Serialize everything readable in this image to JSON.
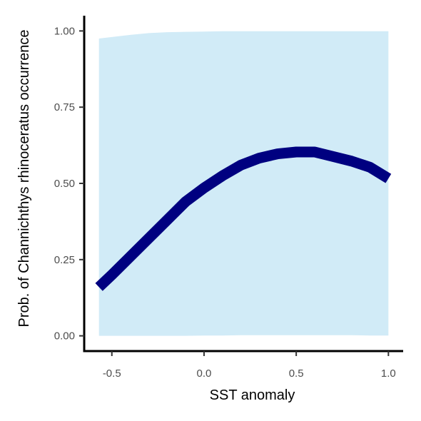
{
  "chart_data": {
    "type": "line",
    "title": "",
    "xlabel": "SST anomaly",
    "ylabel": "Prob. of  Channichthys rhinoceratus  occurrence",
    "xlim": [
      -0.65,
      1.08
    ],
    "ylim": [
      -0.05,
      1.05
    ],
    "x_ticks": [
      -0.5,
      0.0,
      0.5,
      1.0
    ],
    "x_tick_labels": [
      "-0.5",
      "0.0",
      "0.5",
      "1.0"
    ],
    "y_ticks": [
      0.0,
      0.25,
      0.5,
      0.75,
      1.0
    ],
    "y_tick_labels": [
      "0.00",
      "0.25",
      "0.50",
      "0.75",
      "1.00"
    ],
    "grid": false,
    "line_color": "#000080",
    "ribbon_color": "#d1ebf7",
    "series": [
      {
        "x": [
          -0.57,
          -0.5,
          -0.4,
          -0.3,
          -0.2,
          -0.1,
          0.0,
          0.1,
          0.2,
          0.3,
          0.4,
          0.5,
          0.6,
          0.7,
          0.8,
          0.9,
          1.0
        ],
        "y": [
          0.16,
          0.2,
          0.26,
          0.32,
          0.38,
          0.44,
          0.485,
          0.525,
          0.56,
          0.583,
          0.597,
          0.603,
          0.603,
          0.588,
          0.573,
          0.553,
          0.516
        ],
        "upper": [
          0.975,
          0.98,
          0.987,
          0.993,
          0.996,
          0.997,
          0.998,
          0.999,
          0.999,
          0.999,
          0.999,
          0.999,
          0.999,
          0.999,
          0.999,
          0.999,
          0.999
        ],
        "lower": [
          0.0,
          0.0,
          0.0,
          0.0,
          0.0,
          0.0,
          0.001,
          0.001,
          0.002,
          0.002,
          0.002,
          0.002,
          0.002,
          0.002,
          0.002,
          0.001,
          0.001
        ]
      }
    ]
  }
}
